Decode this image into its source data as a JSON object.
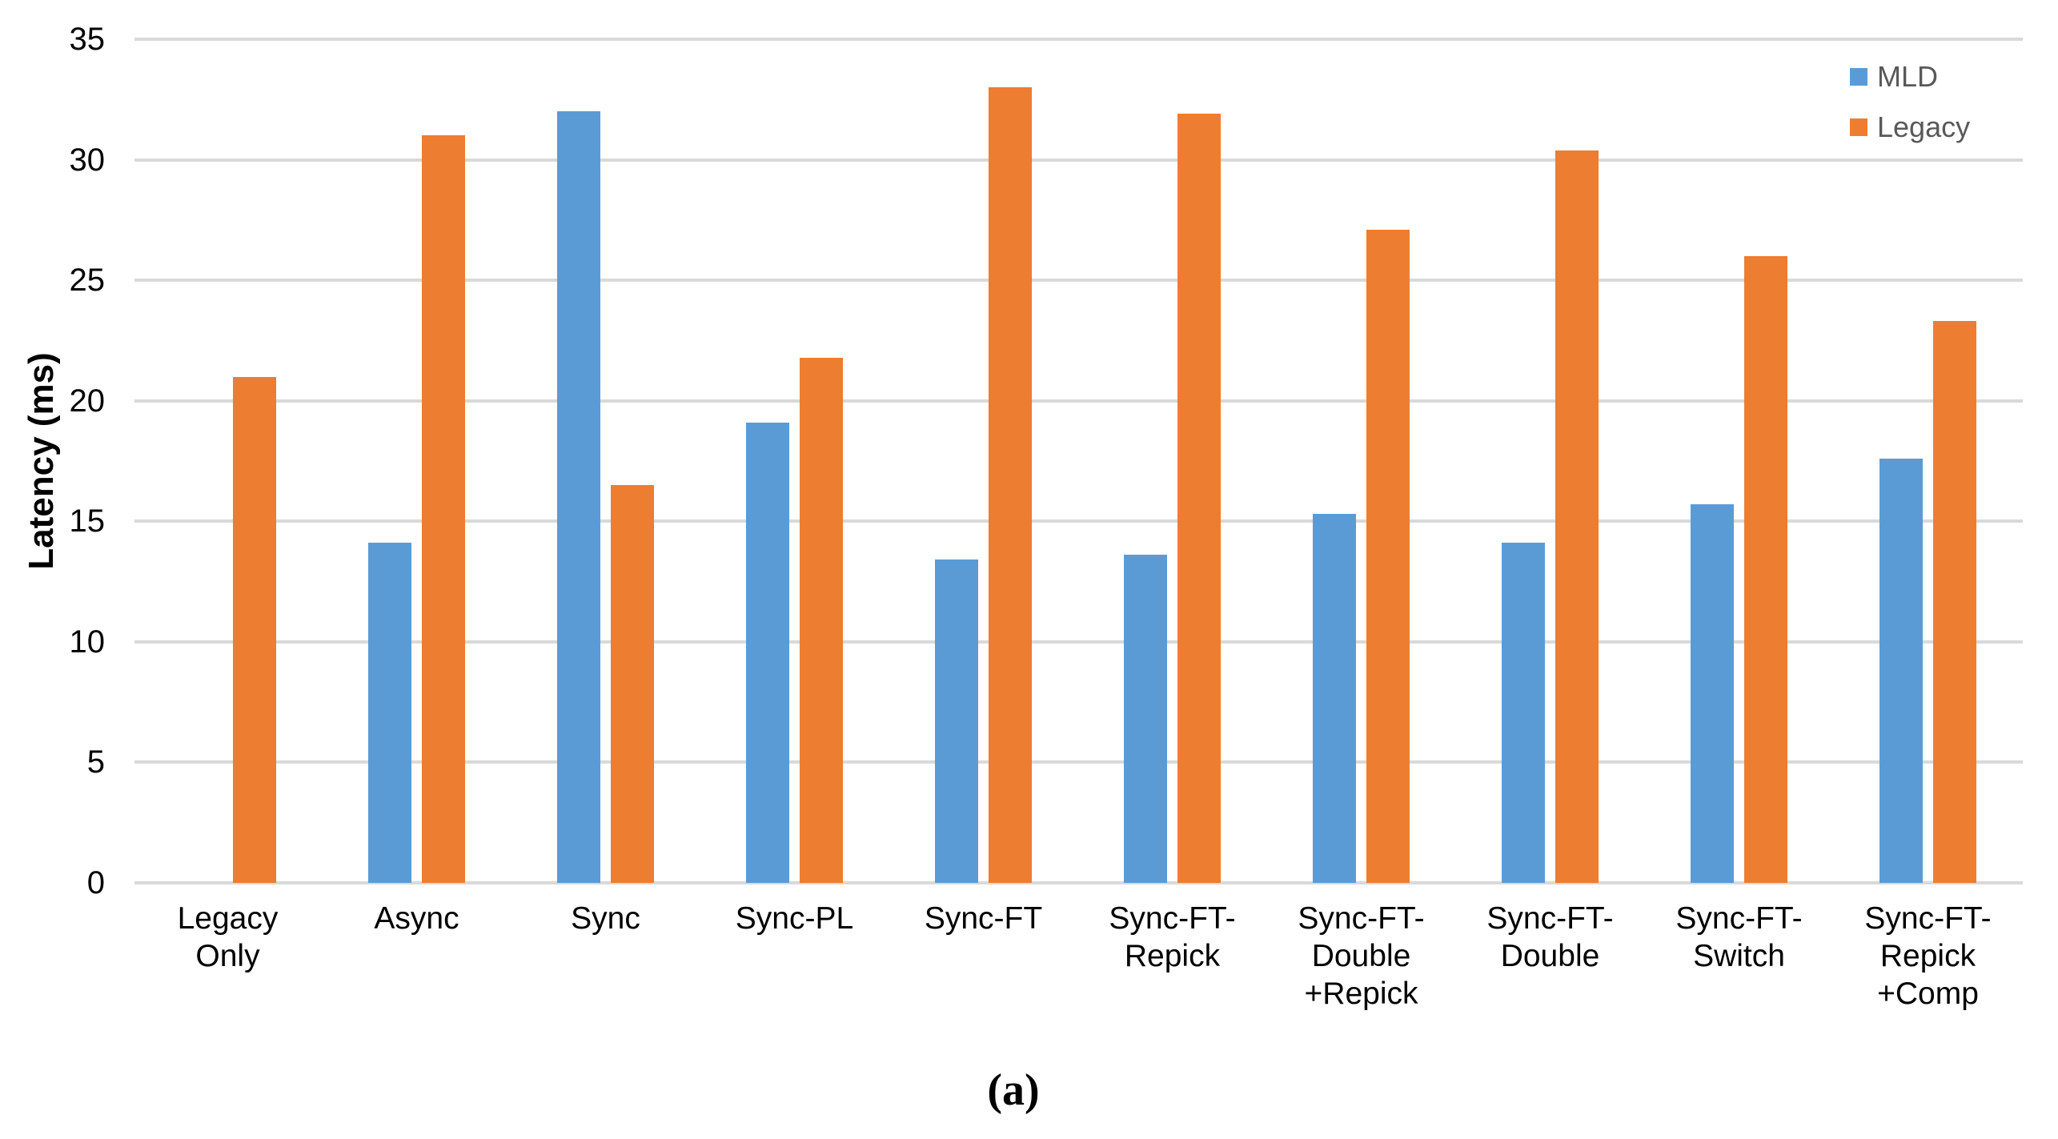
{
  "chart_data": {
    "type": "bar",
    "title": "",
    "xlabel": "",
    "ylabel": "Latency (ms)",
    "ylim": [
      0,
      35
    ],
    "yticks": [
      0,
      5,
      10,
      15,
      20,
      25,
      30,
      35
    ],
    "grid": true,
    "legend_position": "top-right",
    "categories": [
      "Legacy Only",
      "Async",
      "Sync",
      "Sync-PL",
      "Sync-FT",
      "Sync-FT-Repick",
      "Sync-FT-Double +Repick",
      "Sync-FT-Double",
      "Sync-FT-Switch",
      "Sync-FT-Repick +Comp"
    ],
    "category_label_lines": [
      [
        "Legacy",
        "Only"
      ],
      [
        "Async"
      ],
      [
        "Sync"
      ],
      [
        "Sync-PL"
      ],
      [
        "Sync-FT"
      ],
      [
        "Sync-FT-",
        "Repick"
      ],
      [
        "Sync-FT-",
        "Double",
        "+Repick"
      ],
      [
        "Sync-FT-",
        "Double"
      ],
      [
        "Sync-FT-",
        "Switch"
      ],
      [
        "Sync-FT-",
        "Repick",
        "+Comp"
      ]
    ],
    "series": [
      {
        "name": "MLD",
        "color": "#5B9BD5",
        "values": [
          null,
          14.1,
          32,
          19.1,
          13.4,
          13.6,
          15.3,
          14.1,
          15.7,
          17.6
        ]
      },
      {
        "name": "Legacy",
        "color": "#ED7D31",
        "values": [
          21,
          31,
          16.5,
          21.8,
          33,
          31.9,
          27.1,
          30.4,
          26,
          23.3
        ]
      }
    ]
  },
  "legend": {
    "items": [
      {
        "label": "MLD",
        "color": "#5B9BD5"
      },
      {
        "label": "Legacy",
        "color": "#ED7D31"
      }
    ]
  },
  "caption": "(a)",
  "colors": {
    "background": "#FFFFFF",
    "gridline": "#D9D9D9",
    "axis_text": "#000000",
    "legend_text": "#595959"
  }
}
